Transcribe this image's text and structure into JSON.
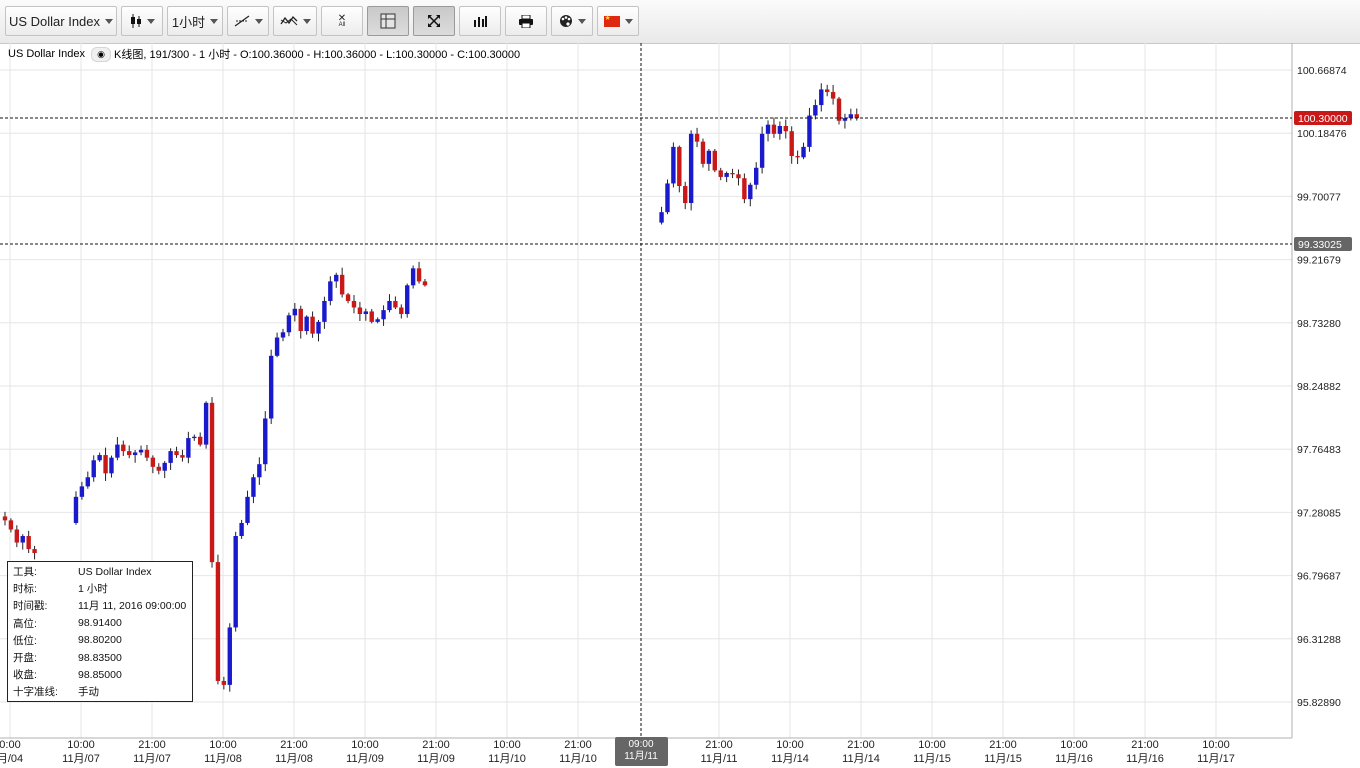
{
  "toolbar": {
    "symbol_label": "US Dollar Index",
    "timeframe_label": "1小时",
    "icons": [
      "candlestick-icon",
      "line-tool-icon",
      "indicator-icon",
      "remove-all-icon",
      "grid-icon",
      "fullscreen-icon",
      "volume-icon",
      "print-icon",
      "palette-icon",
      "china-flag-icon"
    ],
    "remove_all_label": "All"
  },
  "legend": {
    "symbol": "US Dollar Index",
    "text": "K线图, 191/300 - 1 小时 - O:100.36000 - H:100.36000 - L:100.30000 - C:100.30000"
  },
  "price_axis": {
    "labels": [
      "100.66874",
      "100.18476",
      "99.70077",
      "99.21679",
      "98.73280",
      "98.24882",
      "97.76483",
      "97.28085",
      "96.79687",
      "96.31288",
      "95.82890"
    ],
    "current_price": "100.30000",
    "crosshair_price": "99.33025"
  },
  "time_axis": {
    "labels": [
      {
        "t": "0:00",
        "d": "月/04"
      },
      {
        "t": "10:00",
        "d": "11月/07"
      },
      {
        "t": "21:00",
        "d": "11月/07"
      },
      {
        "t": "10:00",
        "d": "11月/08"
      },
      {
        "t": "21:00",
        "d": "11月/08"
      },
      {
        "t": "10:00",
        "d": "11月/09"
      },
      {
        "t": "21:00",
        "d": "11月/09"
      },
      {
        "t": "10:00",
        "d": "11月/10"
      },
      {
        "t": "21:00",
        "d": "11月/10"
      },
      {
        "t": "21:00",
        "d": "11月/11"
      },
      {
        "t": "10:00",
        "d": "11月/14"
      },
      {
        "t": "21:00",
        "d": "11月/14"
      },
      {
        "t": "10:00",
        "d": "11月/15"
      },
      {
        "t": "21:00",
        "d": "11月/15"
      },
      {
        "t": "10:00",
        "d": "11月/16"
      },
      {
        "t": "21:00",
        "d": "11月/16"
      },
      {
        "t": "10:00",
        "d": "11月/17"
      }
    ],
    "crosshair": {
      "t": "09:00",
      "d": "11月/11"
    }
  },
  "info_panel": {
    "rows": [
      {
        "k": "工具:",
        "v": "US Dollar Index"
      },
      {
        "k": "时标:",
        "v": "1 小时"
      },
      {
        "k": "时间戳:",
        "v": "11月 11, 2016 09:00:00"
      },
      {
        "k": "高位:",
        "v": "98.91400"
      },
      {
        "k": "低位:",
        "v": "98.80200"
      },
      {
        "k": "开盘:",
        "v": "98.83500"
      },
      {
        "k": "收盘:",
        "v": "98.85000"
      },
      {
        "k": "十字准线:",
        "v": "手动"
      }
    ]
  },
  "colors": {
    "up": "#1a1acd",
    "down": "#c81818",
    "badge_current": "#c81818",
    "badge_crosshair": "#666666"
  },
  "chart_data": {
    "type": "candlestick",
    "ylim": [
      95.7,
      100.8
    ],
    "grid": true,
    "segments": [
      {
        "from": 0,
        "path": [
          97.25,
          97.22,
          97.15,
          97.05,
          97.1,
          97.0,
          96.97
        ]
      },
      {
        "from": 12,
        "path": [
          97.2,
          97.4,
          97.48,
          97.55,
          97.68,
          97.72,
          97.58,
          97.7,
          97.8,
          97.75,
          97.72,
          97.74,
          97.76,
          97.7,
          97.63,
          97.6,
          97.66,
          97.75,
          97.72,
          97.7,
          97.85,
          97.86,
          97.8,
          98.12,
          96.9,
          95.99,
          95.96,
          96.4,
          97.1,
          97.2,
          97.4,
          97.55,
          97.65,
          98.0,
          98.48,
          98.62,
          98.66,
          98.79,
          98.84,
          98.67,
          98.78,
          98.65,
          98.74,
          98.9,
          99.05,
          99.1,
          98.95,
          98.9,
          98.85,
          98.8,
          98.82,
          98.74,
          98.76,
          98.83,
          98.9,
          98.85,
          98.8,
          99.02,
          99.15,
          99.05,
          99.02
        ]
      },
      {
        "from": 111,
        "path": [
          99.5,
          99.58,
          99.8,
          100.08,
          99.78,
          99.65,
          100.18,
          100.12,
          99.95,
          100.05,
          99.9,
          99.85,
          99.88,
          99.87,
          99.84,
          99.68,
          99.79,
          99.92,
          100.18,
          100.25,
          100.18,
          100.24,
          100.2,
          100.01,
          100.0,
          100.08,
          100.32,
          100.4,
          100.52,
          100.5,
          100.45,
          100.28,
          100.3,
          100.33,
          100.3
        ]
      }
    ]
  }
}
